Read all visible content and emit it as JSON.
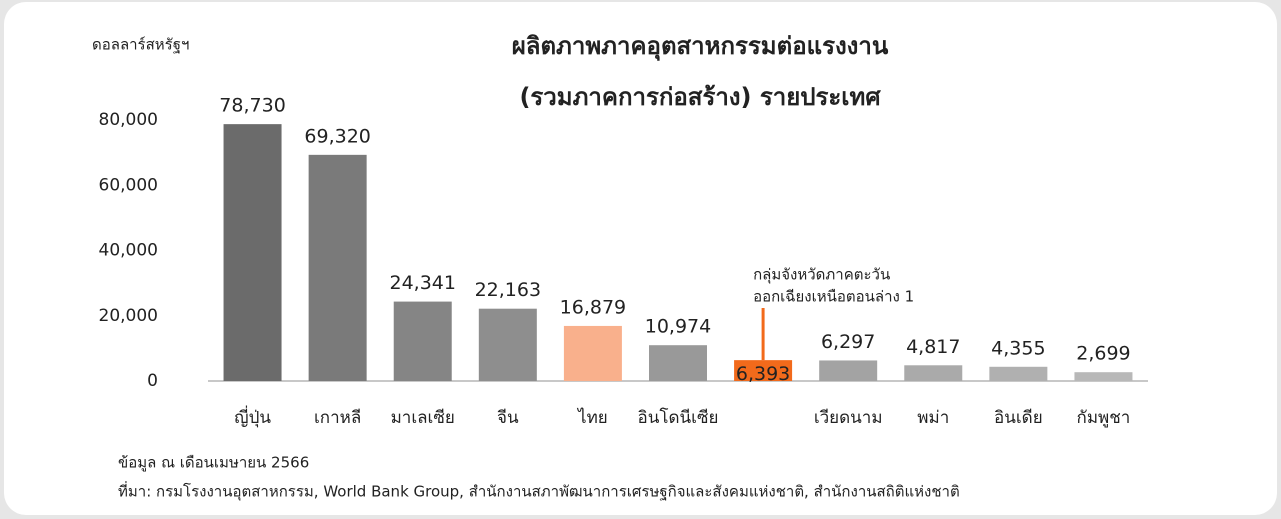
{
  "chart_data": {
    "type": "bar",
    "title": [
      "ผลิตภาพภาคอุตสาหกรรมต่อแรงงาน",
      "(รวมภาคการก่อสร้าง) รายประเทศ"
    ],
    "y_axis_label": "ดอลลาร์สหรัฐฯ",
    "categories": [
      "ญี่ปุ่น",
      "เกาหลี",
      "มาเลเซีย",
      "จีน",
      "ไทย",
      "อินโดนีเซีย",
      null,
      "เวียดนาม",
      "พม่า",
      "อินเดีย",
      "กัมพูชา"
    ],
    "values": [
      78730,
      69320,
      24341,
      22163,
      16879,
      10974,
      6393,
      6297,
      4817,
      4355,
      2699
    ],
    "value_labels": [
      "78,730",
      "69,320",
      "24,341",
      "22,163",
      "16,879",
      "10,974",
      "6,393",
      "6,297",
      "4,817",
      "4,355",
      "2,699"
    ],
    "colors": [
      "#6b6b6b",
      "#7a7a7a",
      "#858585",
      "#8e8e8e",
      "#f9b08c",
      "#999999",
      "#f26a1b",
      "#a3a3a3",
      "#aaaaaa",
      "#b0b0b0",
      "#b8b8b8"
    ],
    "ylim": [
      0,
      80000
    ],
    "yticks": [
      0,
      {
        "value": 20000,
        "label": "20,000"
      },
      {
        "value": 40000,
        "label": "40,000"
      },
      {
        "value": 60000,
        "label": "60,000"
      },
      {
        "value": 80000,
        "label": "80,000"
      }
    ],
    "grid": false,
    "annotation": [
      "กลุ่มจังหวัดภาคตะวัน",
      "ออกเฉียงเหนือตอนล่าง 1"
    ],
    "notes": [
      "ข้อมูล ณ เดือนเมษายน 2566",
      "ที่มา: กรมโรงงานอุตสาหกรรม, World Bank Group, สำนักงานสภาพัฒนาการเศรษฐกิจและสังคมแห่งชาติ, สำนักงานสถิติแห่งชาติ"
    ]
  }
}
